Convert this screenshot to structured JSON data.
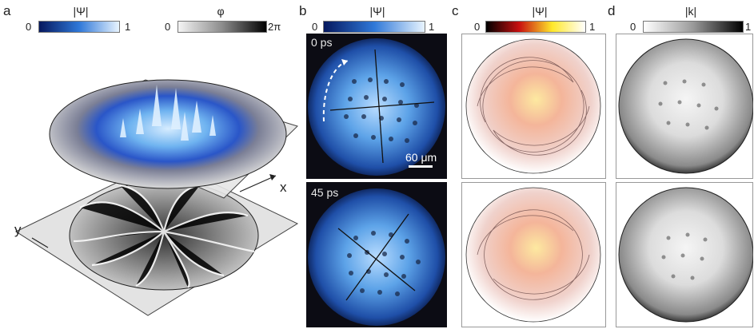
{
  "panels": {
    "a": {
      "letter": "a",
      "colorbar_psi": {
        "title": "|Ψ|",
        "min": "0",
        "max": "1",
        "colors": [
          "#06185e",
          "#2f78d8",
          "#e8f4ff"
        ]
      },
      "colorbar_phi": {
        "title": "φ",
        "min": "0",
        "max": "2π",
        "colors": [
          "#f4f4f4",
          "#8c8c8c",
          "#000000"
        ]
      },
      "axis_x": "x",
      "axis_y": "y"
    },
    "b": {
      "letter": "b",
      "colorbar": {
        "title": "|Ψ|",
        "min": "0",
        "max": "1",
        "colors": [
          "#06185e",
          "#2f78d8",
          "#e8f4ff"
        ]
      },
      "top_label": "0 ps",
      "bottom_label": "45 ps",
      "scale_label": "60 μm"
    },
    "c": {
      "letter": "c",
      "colorbar": {
        "title": "|Ψ|",
        "min": "0",
        "max": "1",
        "colors": [
          "#000000",
          "#c81010",
          "#ffe82a",
          "#ffffff"
        ]
      }
    },
    "d": {
      "letter": "d",
      "colorbar": {
        "title": "|k|",
        "min": "0",
        "max": "1",
        "colors": [
          "#ffffff",
          "#9a9a9a",
          "#000000"
        ]
      }
    }
  }
}
